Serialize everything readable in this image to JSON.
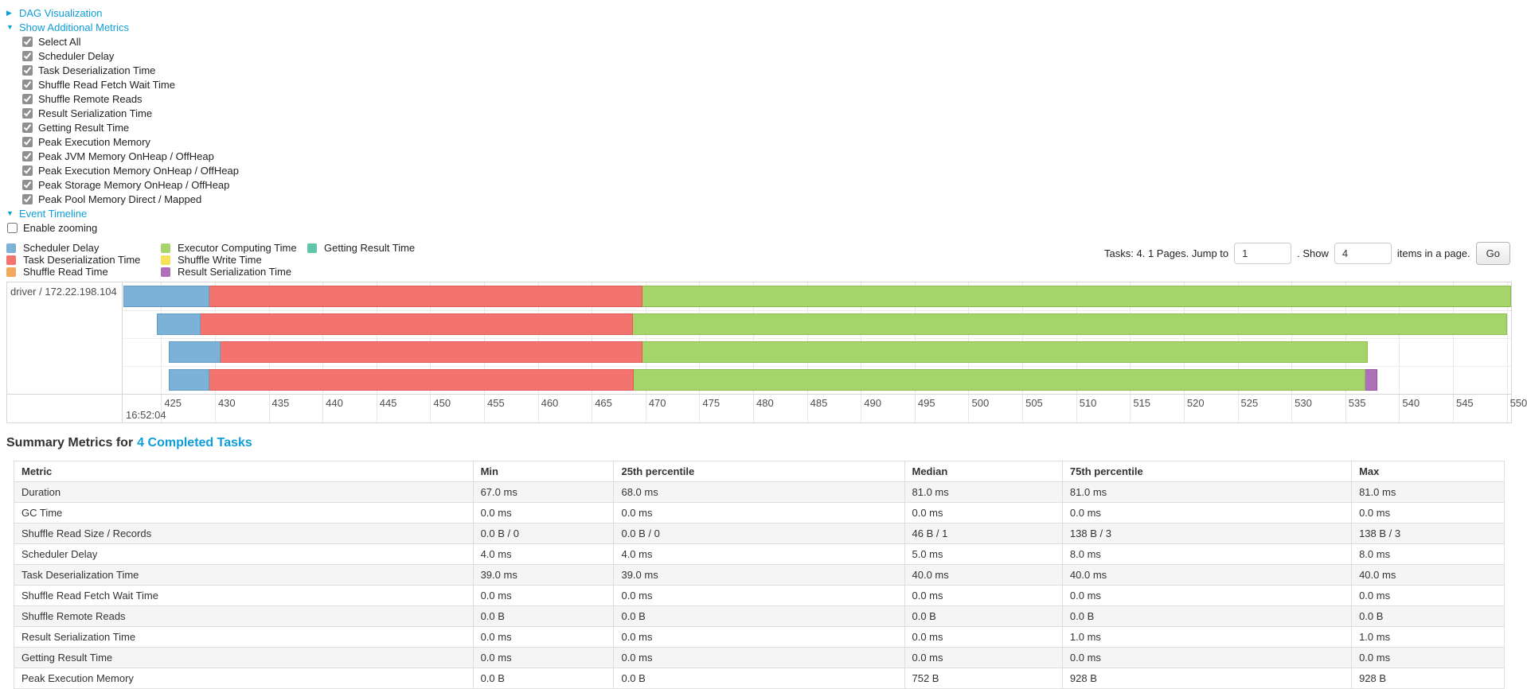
{
  "colors": {
    "ui": {
      "link": "#0d9ed9",
      "chartBorder": "#d5d5d5",
      "grid": "#e7e7e7",
      "stripe": "#f5f5f5",
      "tableBorder": "#dddddd"
    },
    "segments": {
      "scheduler_delay": {
        "label": "Scheduler Delay",
        "fill": "#7CB2D8",
        "border": "#649CC8"
      },
      "task_deserialization": {
        "label": "Task Deserialization Time",
        "fill": "#F3736E",
        "border": "#E25A55"
      },
      "shuffle_read": {
        "label": "Shuffle Read Time",
        "fill": "#F2A85E",
        "border": "#DE8E3C"
      },
      "executor_computing": {
        "label": "Executor Computing Time",
        "fill": "#A5D46A",
        "border": "#8CBE4D"
      },
      "shuffle_write": {
        "label": "Shuffle Write Time",
        "fill": "#F3E35A",
        "border": "#DBC93E"
      },
      "result_serialization": {
        "label": "Result Serialization Time",
        "fill": "#B070B8",
        "border": "#9857A0"
      },
      "getting_result": {
        "label": "Getting Result Time",
        "fill": "#61C5AC",
        "border": "#47AD92"
      }
    }
  },
  "controls": {
    "dag_visualization": "DAG Visualization",
    "show_additional_metrics": "Show Additional Metrics",
    "metric_checkboxes": [
      "Select All",
      "Scheduler Delay",
      "Task Deserialization Time",
      "Shuffle Read Fetch Wait Time",
      "Shuffle Remote Reads",
      "Result Serialization Time",
      "Getting Result Time",
      "Peak Execution Memory",
      "Peak JVM Memory OnHeap / OffHeap",
      "Peak Execution Memory OnHeap / OffHeap",
      "Peak Storage Memory OnHeap / OffHeap",
      "Peak Pool Memory Direct / Mapped"
    ],
    "event_timeline": "Event Timeline",
    "enable_zooming": "Enable zooming"
  },
  "legend": {
    "columns": [
      [
        "scheduler_delay",
        "task_deserialization",
        "shuffle_read"
      ],
      [
        "executor_computing",
        "shuffle_write",
        "result_serialization"
      ],
      [
        "getting_result"
      ]
    ]
  },
  "pagination": {
    "tasks_text": "Tasks: 4. 1 Pages. Jump to",
    "jump_value": "1",
    "show_text": ". Show",
    "show_value": "4",
    "items_text": "items in a page.",
    "go_label": "Go"
  },
  "timeline": {
    "executor_label": "driver / 172.22.198.104",
    "axis_start": 421.5,
    "axis_end": 550.4,
    "ticks": [
      425,
      430,
      435,
      440,
      445,
      450,
      455,
      460,
      465,
      470,
      475,
      480,
      485,
      490,
      495,
      500,
      505,
      510,
      515,
      520,
      525,
      530,
      535,
      540,
      545,
      550
    ],
    "first_tick_time": "16:52:04",
    "tasks": [
      {
        "segments": [
          {
            "type": "scheduler_delay",
            "from": 421.5,
            "to": 429.5
          },
          {
            "type": "task_deserialization",
            "from": 429.5,
            "to": 469.7
          },
          {
            "type": "executor_computing",
            "from": 469.7,
            "to": 550.4
          }
        ]
      },
      {
        "segments": [
          {
            "type": "scheduler_delay",
            "from": 424.6,
            "to": 428.7
          },
          {
            "type": "task_deserialization",
            "from": 428.7,
            "to": 468.8
          },
          {
            "type": "executor_computing",
            "from": 468.8,
            "to": 550.0
          }
        ]
      },
      {
        "segments": [
          {
            "type": "scheduler_delay",
            "from": 425.7,
            "to": 430.5
          },
          {
            "type": "task_deserialization",
            "from": 430.5,
            "to": 469.7
          },
          {
            "type": "executor_computing",
            "from": 469.7,
            "to": 537.1
          }
        ]
      },
      {
        "segments": [
          {
            "type": "scheduler_delay",
            "from": 425.7,
            "to": 429.5
          },
          {
            "type": "task_deserialization",
            "from": 429.5,
            "to": 468.9
          },
          {
            "type": "executor_computing",
            "from": 468.9,
            "to": 536.9
          },
          {
            "type": "result_serialization",
            "from": 536.9,
            "to": 538.0
          }
        ]
      }
    ]
  },
  "summary": {
    "title_prefix": "Summary Metrics for",
    "title_link": "4 Completed Tasks",
    "headers": [
      "Metric",
      "Min",
      "25th percentile",
      "Median",
      "75th percentile",
      "Max"
    ],
    "rows": [
      {
        "metric": "Duration",
        "values": [
          "67.0 ms",
          "68.0 ms",
          "81.0 ms",
          "81.0 ms",
          "81.0 ms"
        ]
      },
      {
        "metric": "GC Time",
        "values": [
          "0.0 ms",
          "0.0 ms",
          "0.0 ms",
          "0.0 ms",
          "0.0 ms"
        ]
      },
      {
        "metric": "Shuffle Read Size / Records",
        "values": [
          "0.0 B / 0",
          "0.0 B / 0",
          "46 B / 1",
          "138 B / 3",
          "138 B / 3"
        ]
      },
      {
        "metric": "Scheduler Delay",
        "values": [
          "4.0 ms",
          "4.0 ms",
          "5.0 ms",
          "8.0 ms",
          "8.0 ms"
        ]
      },
      {
        "metric": "Task Deserialization Time",
        "values": [
          "39.0 ms",
          "39.0 ms",
          "40.0 ms",
          "40.0 ms",
          "40.0 ms"
        ]
      },
      {
        "metric": "Shuffle Read Fetch Wait Time",
        "values": [
          "0.0 ms",
          "0.0 ms",
          "0.0 ms",
          "0.0 ms",
          "0.0 ms"
        ]
      },
      {
        "metric": "Shuffle Remote Reads",
        "values": [
          "0.0 B",
          "0.0 B",
          "0.0 B",
          "0.0 B",
          "0.0 B"
        ]
      },
      {
        "metric": "Result Serialization Time",
        "values": [
          "0.0 ms",
          "0.0 ms",
          "0.0 ms",
          "1.0 ms",
          "1.0 ms"
        ]
      },
      {
        "metric": "Getting Result Time",
        "values": [
          "0.0 ms",
          "0.0 ms",
          "0.0 ms",
          "0.0 ms",
          "0.0 ms"
        ]
      },
      {
        "metric": "Peak Execution Memory",
        "values": [
          "0.0 B",
          "0.0 B",
          "752 B",
          "928 B",
          "928 B"
        ]
      }
    ]
  }
}
